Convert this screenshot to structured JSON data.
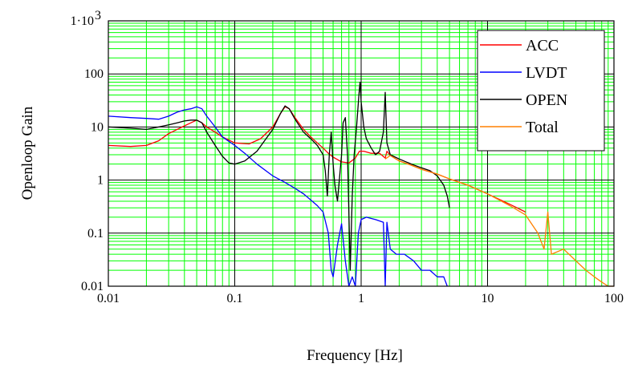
{
  "chart_data": {
    "type": "line",
    "title": "",
    "xlabel": "Frequency [Hz]",
    "ylabel": "Openloop Gain",
    "x_scale": "log",
    "y_scale": "log",
    "xlim": [
      0.01,
      100
    ],
    "ylim": [
      0.01,
      1000
    ],
    "x_ticks": [
      {
        "value": 0.01,
        "label": "0.01"
      },
      {
        "value": 0.1,
        "label": "0.1"
      },
      {
        "value": 1,
        "label": "1"
      },
      {
        "value": 10,
        "label": "10"
      },
      {
        "value": 100,
        "label": "100"
      }
    ],
    "y_ticks": [
      {
        "value": 0.01,
        "label": "0.01"
      },
      {
        "value": 0.1,
        "label": "0.1"
      },
      {
        "value": 1,
        "label": "1"
      },
      {
        "value": 10,
        "label": "10"
      },
      {
        "value": 100,
        "label": "100"
      },
      {
        "value": 1000,
        "label": "1·10"
      }
    ],
    "top_tick_exponent": "3",
    "grid": true,
    "grid_color": "#00ff00",
    "legend_position": "top-right",
    "series": [
      {
        "name": "ACC",
        "color": "#ff0000",
        "points": [
          [
            0.01,
            4.5
          ],
          [
            0.015,
            4.3
          ],
          [
            0.02,
            4.5
          ],
          [
            0.025,
            5.5
          ],
          [
            0.03,
            7.5
          ],
          [
            0.035,
            9
          ],
          [
            0.04,
            10.5
          ],
          [
            0.045,
            12
          ],
          [
            0.05,
            13.5
          ],
          [
            0.055,
            12
          ],
          [
            0.06,
            10
          ],
          [
            0.07,
            8
          ],
          [
            0.08,
            6.5
          ],
          [
            0.1,
            5
          ],
          [
            0.13,
            4.8
          ],
          [
            0.16,
            6
          ],
          [
            0.2,
            10
          ],
          [
            0.23,
            18
          ],
          [
            0.25,
            24
          ],
          [
            0.27,
            22
          ],
          [
            0.3,
            15
          ],
          [
            0.35,
            9
          ],
          [
            0.4,
            6.5
          ],
          [
            0.45,
            5
          ],
          [
            0.5,
            4
          ],
          [
            0.55,
            3.2
          ],
          [
            0.6,
            2.7
          ],
          [
            0.7,
            2.2
          ],
          [
            0.8,
            2.1
          ],
          [
            0.9,
            2.6
          ],
          [
            0.97,
            3.5
          ],
          [
            1.05,
            3.5
          ],
          [
            1.2,
            3.2
          ],
          [
            1.4,
            3.2
          ],
          [
            1.55,
            2.6
          ],
          [
            1.6,
            3.5
          ],
          [
            1.7,
            2.9
          ],
          [
            2,
            2.3
          ],
          [
            2.5,
            1.9
          ],
          [
            3,
            1.6
          ],
          [
            4,
            1.3
          ],
          [
            5,
            1.05
          ],
          [
            7,
            0.8
          ],
          [
            10,
            0.55
          ],
          [
            15,
            0.35
          ],
          [
            20,
            0.25
          ]
        ]
      },
      {
        "name": "LVDT",
        "color": "#0000ff",
        "points": [
          [
            0.01,
            16
          ],
          [
            0.015,
            15
          ],
          [
            0.02,
            14.5
          ],
          [
            0.025,
            14
          ],
          [
            0.03,
            16
          ],
          [
            0.035,
            19
          ],
          [
            0.04,
            21
          ],
          [
            0.045,
            22
          ],
          [
            0.05,
            24
          ],
          [
            0.055,
            22
          ],
          [
            0.06,
            16
          ],
          [
            0.07,
            10
          ],
          [
            0.08,
            6.5
          ],
          [
            0.1,
            4.5
          ],
          [
            0.12,
            3.2
          ],
          [
            0.15,
            2
          ],
          [
            0.2,
            1.2
          ],
          [
            0.25,
            0.9
          ],
          [
            0.3,
            0.7
          ],
          [
            0.35,
            0.55
          ],
          [
            0.4,
            0.42
          ],
          [
            0.45,
            0.33
          ],
          [
            0.5,
            0.25
          ],
          [
            0.55,
            0.1
          ],
          [
            0.58,
            0.02
          ],
          [
            0.6,
            0.015
          ],
          [
            0.65,
            0.06
          ],
          [
            0.7,
            0.15
          ],
          [
            0.75,
            0.03
          ],
          [
            0.8,
            0.01
          ],
          [
            0.85,
            0.015
          ],
          [
            0.9,
            0.01
          ],
          [
            0.95,
            0.1
          ],
          [
            1.0,
            0.18
          ],
          [
            1.1,
            0.2
          ],
          [
            1.3,
            0.18
          ],
          [
            1.5,
            0.16
          ],
          [
            1.55,
            0.01
          ],
          [
            1.6,
            0.16
          ],
          [
            1.7,
            0.05
          ],
          [
            1.9,
            0.04
          ],
          [
            2.2,
            0.04
          ],
          [
            2.6,
            0.03
          ],
          [
            3,
            0.02
          ],
          [
            3.5,
            0.02
          ],
          [
            4,
            0.015
          ],
          [
            4.5,
            0.015
          ],
          [
            4.8,
            0.01
          ]
        ]
      },
      {
        "name": "OPEN",
        "color": "#000000",
        "points": [
          [
            0.01,
            10
          ],
          [
            0.015,
            9.5
          ],
          [
            0.02,
            9
          ],
          [
            0.025,
            10
          ],
          [
            0.03,
            11
          ],
          [
            0.035,
            12
          ],
          [
            0.04,
            13
          ],
          [
            0.045,
            13.5
          ],
          [
            0.05,
            13.5
          ],
          [
            0.055,
            12
          ],
          [
            0.06,
            8
          ],
          [
            0.07,
            4.5
          ],
          [
            0.08,
            2.8
          ],
          [
            0.09,
            2.1
          ],
          [
            0.1,
            2
          ],
          [
            0.12,
            2.3
          ],
          [
            0.15,
            3.5
          ],
          [
            0.2,
            9
          ],
          [
            0.23,
            18
          ],
          [
            0.25,
            25
          ],
          [
            0.27,
            22
          ],
          [
            0.3,
            14
          ],
          [
            0.35,
            8
          ],
          [
            0.4,
            6
          ],
          [
            0.45,
            4.5
          ],
          [
            0.5,
            3
          ],
          [
            0.52,
            1.5
          ],
          [
            0.54,
            0.5
          ],
          [
            0.56,
            3
          ],
          [
            0.58,
            8
          ],
          [
            0.6,
            2
          ],
          [
            0.62,
            0.8
          ],
          [
            0.65,
            0.4
          ],
          [
            0.7,
            3
          ],
          [
            0.72,
            12
          ],
          [
            0.75,
            15
          ],
          [
            0.78,
            3
          ],
          [
            0.8,
            0.25
          ],
          [
            0.82,
            0.02
          ],
          [
            0.85,
            0.5
          ],
          [
            0.88,
            3
          ],
          [
            0.92,
            10
          ],
          [
            0.96,
            40
          ],
          [
            0.98,
            70
          ],
          [
            1.0,
            30
          ],
          [
            1.05,
            10
          ],
          [
            1.1,
            6
          ],
          [
            1.2,
            4
          ],
          [
            1.3,
            3
          ],
          [
            1.4,
            3.5
          ],
          [
            1.5,
            8
          ],
          [
            1.55,
            45
          ],
          [
            1.6,
            5
          ],
          [
            1.7,
            3
          ],
          [
            2,
            2.5
          ],
          [
            2.5,
            2
          ],
          [
            3,
            1.7
          ],
          [
            3.5,
            1.5
          ],
          [
            4,
            1.2
          ],
          [
            4.5,
            0.8
          ],
          [
            4.8,
            0.5
          ],
          [
            5,
            0.3
          ]
        ]
      },
      {
        "name": "Total",
        "color": "#ff8000",
        "points": [
          [
            1.55,
            2.5
          ],
          [
            1.7,
            2.9
          ],
          [
            2,
            2.3
          ],
          [
            2.5,
            1.9
          ],
          [
            3,
            1.6
          ],
          [
            4,
            1.3
          ],
          [
            5,
            1.05
          ],
          [
            7,
            0.8
          ],
          [
            10,
            0.55
          ],
          [
            15,
            0.33
          ],
          [
            20,
            0.22
          ],
          [
            25,
            0.1
          ],
          [
            28,
            0.05
          ],
          [
            30,
            0.25
          ],
          [
            32,
            0.04
          ],
          [
            40,
            0.05
          ],
          [
            50,
            0.03
          ],
          [
            60,
            0.02
          ],
          [
            70,
            0.015
          ],
          [
            80,
            0.012
          ],
          [
            90,
            0.01
          ],
          [
            100,
            0.01
          ]
        ]
      }
    ]
  }
}
